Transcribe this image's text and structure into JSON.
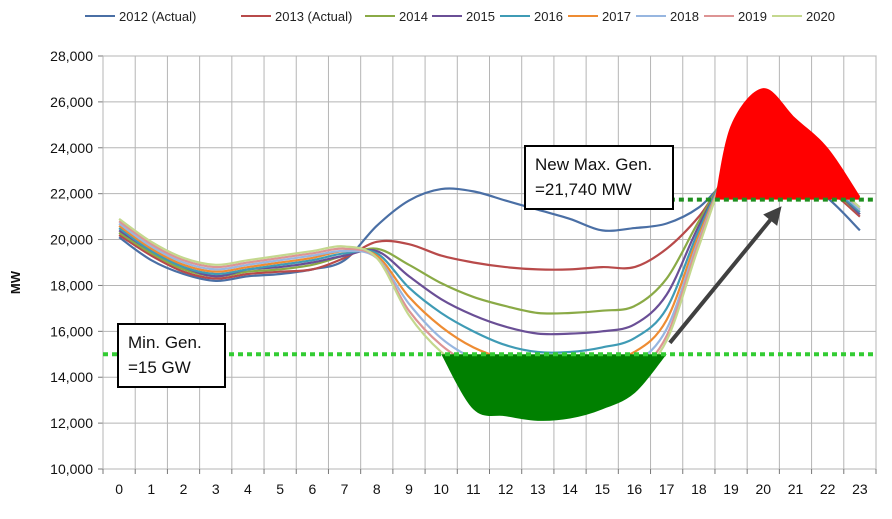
{
  "chart_data": {
    "type": "line",
    "ylabel": "MW",
    "xlabel": "",
    "ylim": [
      10000,
      28000
    ],
    "yticks": [
      10000,
      12000,
      14000,
      16000,
      18000,
      20000,
      22000,
      24000,
      26000,
      28000
    ],
    "ytick_labels": [
      "10,000",
      "12,000",
      "14,000",
      "16,000",
      "18,000",
      "20,000",
      "22,000",
      "24,000",
      "26,000",
      "28,000"
    ],
    "x": [
      0,
      1,
      2,
      3,
      4,
      5,
      6,
      7,
      8,
      9,
      10,
      11,
      12,
      13,
      14,
      15,
      16,
      17,
      18,
      19,
      20,
      21,
      22,
      23
    ],
    "grid": true,
    "legend_position": "top",
    "series": [
      {
        "name": "2012 (Actual)",
        "color": "#4a6fa5",
        "values": [
          20100,
          19100,
          18500,
          18200,
          18400,
          18500,
          18700,
          19100,
          20600,
          21700,
          22200,
          22100,
          21700,
          21300,
          20900,
          20400,
          20500,
          20700,
          21400,
          22700,
          22800,
          22600,
          21800,
          20400
        ]
      },
      {
        "name": "2013 (Actual)",
        "color": "#b84a4a",
        "values": [
          20200,
          19300,
          18600,
          18300,
          18500,
          18600,
          18700,
          19200,
          19900,
          19800,
          19300,
          19000,
          18800,
          18700,
          18700,
          18800,
          18800,
          19600,
          21000,
          22900,
          23100,
          22900,
          22200,
          21000
        ]
      },
      {
        "name": "2014",
        "color": "#8aaa46",
        "values": [
          20300,
          19400,
          18700,
          18400,
          18600,
          18700,
          18900,
          19300,
          19600,
          18900,
          18100,
          17500,
          17100,
          16800,
          16800,
          16900,
          17100,
          18300,
          20800,
          23000,
          23200,
          23000,
          22300,
          21100
        ]
      },
      {
        "name": "2015",
        "color": "#6a4f96",
        "values": [
          20400,
          19500,
          18800,
          18400,
          18700,
          18800,
          19000,
          19300,
          19500,
          18400,
          17400,
          16700,
          16200,
          15900,
          15900,
          16000,
          16300,
          17600,
          20600,
          23000,
          23300,
          23100,
          22400,
          21100
        ]
      },
      {
        "name": "2016",
        "color": "#3f9bb5",
        "values": [
          20500,
          19500,
          18800,
          18500,
          18700,
          18900,
          19100,
          19400,
          19400,
          17900,
          16800,
          16000,
          15400,
          15100,
          15100,
          15300,
          15700,
          17000,
          20400,
          23100,
          23400,
          23200,
          22400,
          21200
        ]
      },
      {
        "name": "2017",
        "color": "#ee8c33",
        "values": [
          20600,
          19600,
          18900,
          18600,
          18800,
          19000,
          19200,
          19500,
          19300,
          17500,
          16200,
          15300,
          14800,
          14600,
          14600,
          14800,
          15100,
          16500,
          20200,
          23100,
          23400,
          23200,
          22500,
          21300
        ]
      },
      {
        "name": "2018",
        "color": "#97b6e0",
        "values": [
          20700,
          19700,
          19000,
          18700,
          18900,
          19100,
          19300,
          19500,
          19200,
          17200,
          15700,
          14800,
          14200,
          13900,
          13900,
          14200,
          14600,
          16100,
          20000,
          23200,
          23500,
          23300,
          22500,
          21300
        ]
      },
      {
        "name": "2019",
        "color": "#dd9494",
        "values": [
          20800,
          19800,
          19100,
          18800,
          19000,
          19200,
          19400,
          19600,
          19200,
          16900,
          15400,
          14500,
          13900,
          13600,
          13600,
          13800,
          14200,
          15800,
          19900,
          23200,
          23500,
          23300,
          22500,
          21400
        ]
      },
      {
        "name": "2020",
        "color": "#c4d88e",
        "values": [
          20900,
          19900,
          19200,
          18900,
          19100,
          19300,
          19500,
          19700,
          19200,
          16700,
          15100,
          14200,
          13500,
          13300,
          13300,
          13500,
          14000,
          15600,
          19700,
          23300,
          23600,
          23400,
          22600,
          21400
        ]
      }
    ],
    "bands": {
      "min_gen_level": 15000,
      "min_gen_fill_color": "#008000",
      "min_gen_hours": [
        10,
        11,
        12,
        13,
        14,
        15,
        16,
        17
      ],
      "min_gen_bottom": [
        15000,
        12600,
        12300,
        12100,
        12200,
        12600,
        13300,
        15000
      ],
      "max_gen_level": 21740,
      "max_gen_fill_color": "#ff0000",
      "max_gen_hours": [
        18.5,
        19,
        20,
        21,
        22,
        23
      ],
      "max_gen_top": [
        21740,
        25000,
        26600,
        25300,
        24000,
        21900
      ],
      "reference_line_color": "#33cc33"
    },
    "annotations": [
      {
        "text_lines": [
          "Min. Gen.",
          "=15 GW"
        ]
      },
      {
        "text_lines": [
          "New Max. Gen.",
          "=21,740 MW"
        ]
      }
    ],
    "arrow_color": "#404040"
  }
}
